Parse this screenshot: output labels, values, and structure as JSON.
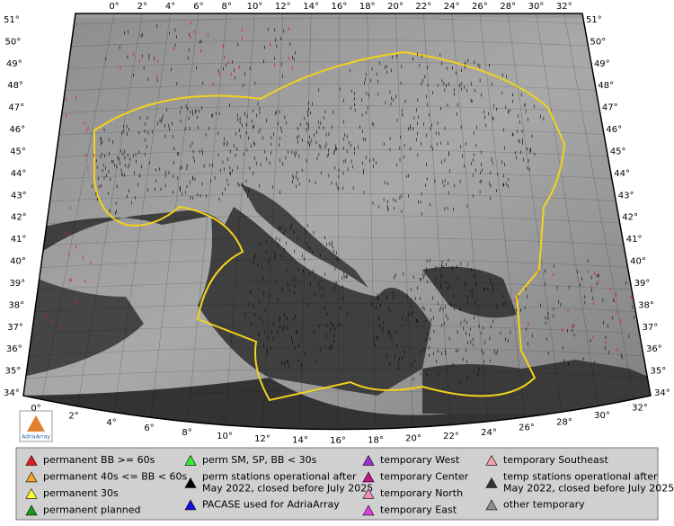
{
  "map": {
    "lon_labels_top": [
      "0°",
      "2°",
      "4°",
      "6°",
      "8°",
      "10°",
      "12°",
      "14°",
      "16°",
      "18°",
      "20°",
      "22°",
      "24°",
      "26°",
      "28°",
      "30°",
      "32°"
    ],
    "lon_labels_bottom": [
      "0°",
      "2°",
      "4°",
      "6°",
      "8°",
      "10°",
      "12°",
      "14°",
      "16°",
      "18°",
      "20°",
      "22°",
      "24°",
      "26°",
      "28°",
      "30°",
      "32°"
    ],
    "lat_labels_left": [
      "51°",
      "50°",
      "49°",
      "48°",
      "47°",
      "46°",
      "45°",
      "44°",
      "43°",
      "42°",
      "41°",
      "40°",
      "39°",
      "38°",
      "37°",
      "36°",
      "35°",
      "34°"
    ],
    "lat_labels_right": [
      "51°",
      "50°",
      "49°",
      "48°",
      "47°",
      "46°",
      "45°",
      "44°",
      "43°",
      "42°",
      "41°",
      "40°",
      "39°",
      "38°",
      "37°",
      "36°",
      "35°",
      "34°"
    ]
  },
  "logo": "AdriaArray",
  "legend": [
    {
      "lines": [
        "permanent BB >= 60s"
      ],
      "color": "#e41a1c"
    },
    {
      "lines": [
        "permanent 40s <= BB < 60s"
      ],
      "color": "#f5a623"
    },
    {
      "lines": [
        "permanent 30s"
      ],
      "color": "#ffff33"
    },
    {
      "lines": [
        "permanent planned"
      ],
      "color": "#1a9a1a"
    },
    {
      "lines": [
        "perm SM, SP, BB < 30s"
      ],
      "color": "#33ee33"
    },
    {
      "lines": [
        "perm stations operational after",
        "May 2022, closed before July 2025"
      ],
      "color": "#000000"
    },
    {
      "lines": [
        "PACASE used for AdriaArray"
      ],
      "color": "#1010e0"
    },
    {
      "lines": [
        "temporary West"
      ],
      "color": "#9932cc"
    },
    {
      "lines": [
        "temporary Center"
      ],
      "color": "#c71585"
    },
    {
      "lines": [
        "temporary North"
      ],
      "color": "#f08cc8"
    },
    {
      "lines": [
        "temporary East"
      ],
      "color": "#e040e0"
    },
    {
      "lines": [
        "temporary Southeast"
      ],
      "color": "#f4a0b0"
    },
    {
      "lines": [
        "temp stations operational after",
        "May 2022, closed before July 2025"
      ],
      "color": "#333333"
    },
    {
      "lines": [
        "other temporary"
      ],
      "color": "#909090"
    }
  ]
}
